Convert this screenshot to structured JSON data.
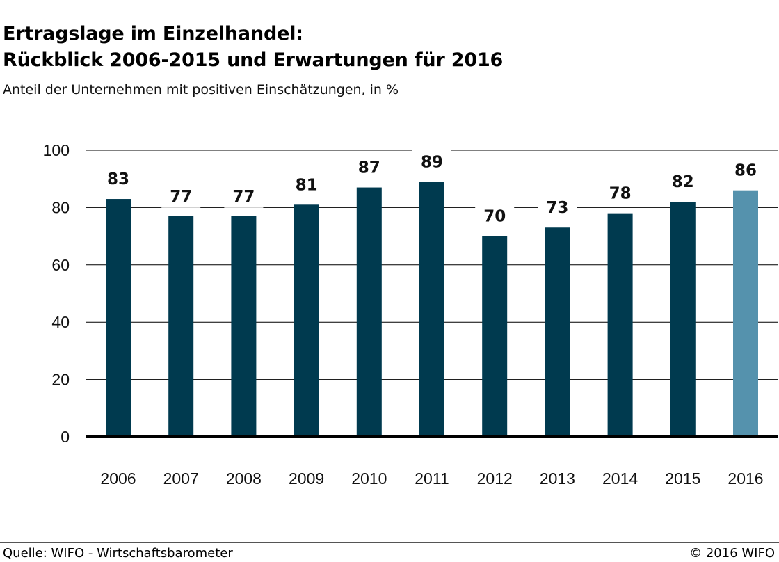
{
  "header": {
    "title_line1": "Ertragslage im Einzelhandel:",
    "title_line2": "Rückblick 2006-2015 und Erwartungen für 2016",
    "subtitle": "Anteil der Unternehmen mit positiven Einschätzungen, in %"
  },
  "footer": {
    "source": "Quelle: WIFO - Wirtschaftsbarometer",
    "copyright": "© 2016 WIFO"
  },
  "chart_data": {
    "type": "bar",
    "title": "Ertragslage im Einzelhandel: Rückblick 2006-2015 und Erwartungen für 2016",
    "subtitle": "Anteil der Unternehmen mit positiven Einschätzungen, in %",
    "xlabel": "",
    "ylabel": "",
    "categories": [
      "2006",
      "2007",
      "2008",
      "2009",
      "2010",
      "2011",
      "2012",
      "2013",
      "2014",
      "2015",
      "2016"
    ],
    "values": [
      83,
      77,
      77,
      81,
      87,
      89,
      70,
      73,
      78,
      82,
      86
    ],
    "data_labels": [
      "83",
      "77",
      "77",
      "81",
      "87",
      "89",
      "70",
      "73",
      "78",
      "82",
      "86"
    ],
    "ylim": [
      0,
      100
    ],
    "yticks": [
      0,
      20,
      40,
      60,
      80,
      100
    ],
    "grid": true,
    "colors": {
      "bar": "#003a4f",
      "bar_highlight": "#5592ad",
      "highlight_category": "2016",
      "grid": "#000000",
      "axis": "#000000"
    }
  }
}
